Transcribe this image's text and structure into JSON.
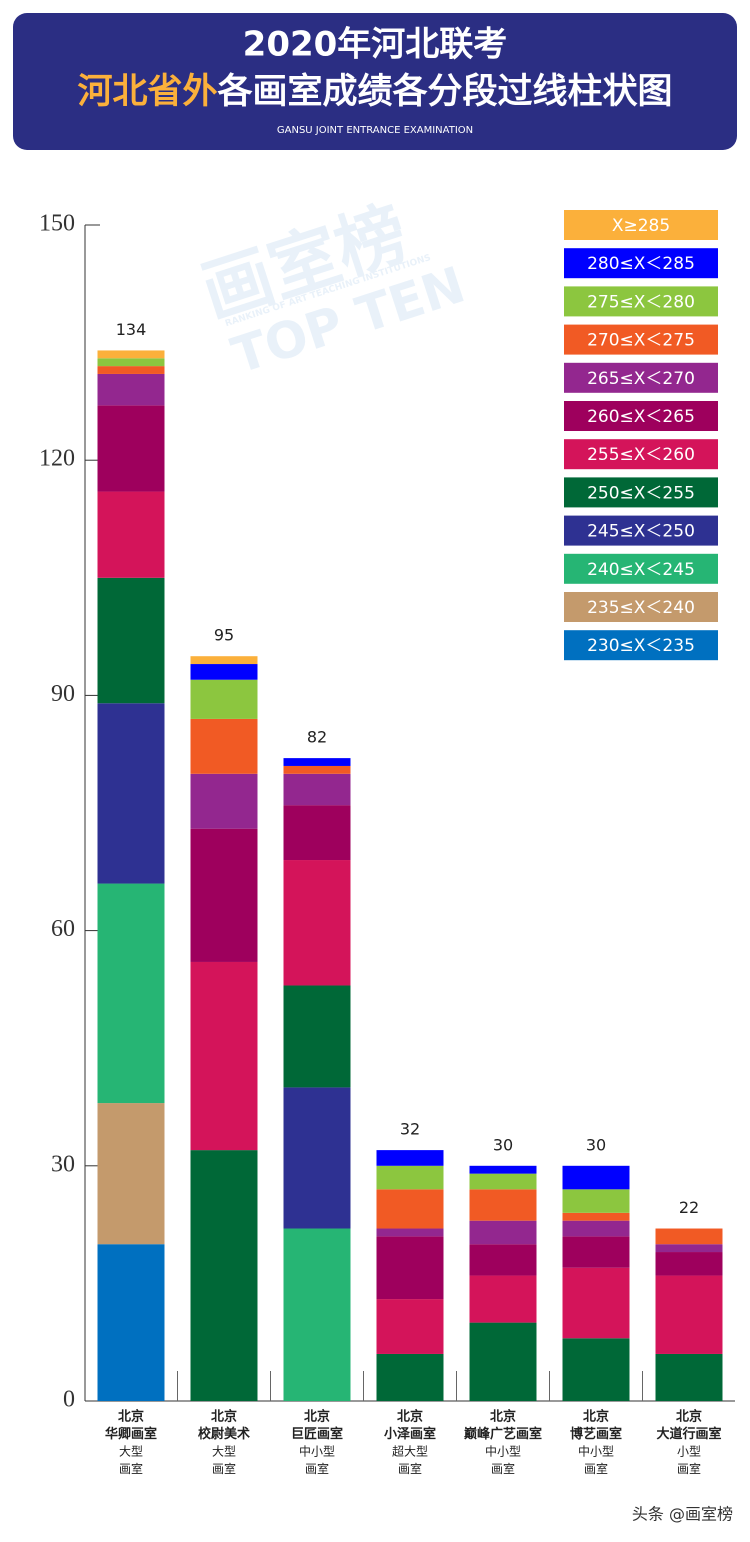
{
  "chart_data": {
    "type": "stacked_bar",
    "title": "2020年河北联考",
    "subtitle_highlight": "河北省外",
    "subtitle": "各画室成绩各分段过线柱状图",
    "caption": "GANSU JOINT ENTRANCE EXAMINATION",
    "categories": [
      [
        "北京",
        "华卿画室",
        "大型",
        "画室"
      ],
      [
        "北京",
        "校尉美术",
        "大型",
        "画室"
      ],
      [
        "北京",
        "巨匠画室",
        "中小型",
        "画室"
      ],
      [
        "北京",
        "小泽画室",
        "超大型",
        "画室"
      ],
      [
        "北京",
        "巅峰广艺画室",
        "中小型",
        "画室"
      ],
      [
        "北京",
        "博艺画室",
        "中小型",
        "画室"
      ],
      [
        "北京",
        "大道行画室",
        "小型",
        "画室"
      ]
    ],
    "totals": [
      134,
      95,
      82,
      32,
      30,
      30,
      22
    ],
    "series": [
      {
        "name": "230≤X＜235",
        "color": "#0070c0",
        "values": [
          20,
          0,
          0,
          0,
          0,
          0,
          0
        ]
      },
      {
        "name": "235≤X＜240",
        "color": "#c49a6c",
        "values": [
          18,
          0,
          0,
          0,
          0,
          0,
          0
        ]
      },
      {
        "name": "240≤X＜245",
        "color": "#26b574",
        "values": [
          28,
          0,
          22,
          0,
          0,
          0,
          0
        ]
      },
      {
        "name": "245≤X＜250",
        "color": "#2e3192",
        "values": [
          23,
          0,
          18,
          0,
          0,
          0,
          0
        ]
      },
      {
        "name": "250≤X＜255",
        "color": "#006837",
        "values": [
          16,
          32,
          13,
          6,
          10,
          8,
          6
        ]
      },
      {
        "name": "255≤X＜260",
        "color": "#d4145a",
        "values": [
          11,
          24,
          16,
          7,
          6,
          9,
          10
        ]
      },
      {
        "name": "260≤X＜265",
        "color": "#9e005d",
        "values": [
          11,
          17,
          7,
          8,
          4,
          4,
          3
        ]
      },
      {
        "name": "265≤X＜270",
        "color": "#93278f",
        "values": [
          4,
          7,
          4,
          1,
          3,
          2,
          1
        ]
      },
      {
        "name": "270≤X＜275",
        "color": "#f15a24",
        "values": [
          1,
          7,
          1,
          5,
          4,
          1,
          2
        ]
      },
      {
        "name": "275≤X＜280",
        "color": "#8cc63f",
        "values": [
          1,
          5,
          0,
          3,
          2,
          3,
          0
        ]
      },
      {
        "name": "280≤X＜285",
        "color": "#0000ff",
        "values": [
          0,
          2,
          1,
          2,
          1,
          3,
          0
        ]
      },
      {
        "name": "X≥285",
        "color": "#fbb03b",
        "values": [
          1,
          1,
          0,
          0,
          0,
          0,
          0
        ]
      }
    ],
    "ylim": [
      0,
      150
    ],
    "yticks": [
      0,
      30,
      60,
      90,
      120,
      150
    ],
    "legend": "top-right",
    "watermark": {
      "cn": "画室榜",
      "en": "TOP TEN",
      "sub": "RANKING OF ART TEACHING INSTITUTIONS"
    },
    "credit": "头条 @画室榜"
  }
}
